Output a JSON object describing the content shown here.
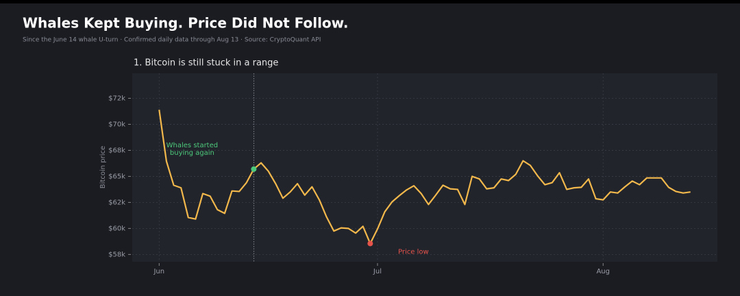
{
  "chart_data": {
    "type": "line",
    "title": "Whales Kept Buying. Price Did Not Follow.",
    "subtitle": "Since the June 14 whale U-turn · Confirmed daily data through Aug 13 · Source: CryptoQuant API",
    "panel_title": "1. Bitcoin is still stuck in a range",
    "y_label": "Bitcoin price",
    "x": [
      0,
      1,
      2,
      3,
      4,
      5,
      6,
      7,
      8,
      9,
      10,
      11,
      12,
      13,
      14,
      15,
      16,
      17,
      18,
      19,
      20,
      21,
      22,
      23,
      24,
      25,
      26,
      27,
      28,
      29,
      30,
      31,
      32,
      33,
      34,
      35,
      36,
      37,
      38,
      39,
      40,
      41,
      42,
      43,
      44,
      45,
      46,
      47,
      48,
      49,
      50,
      51,
      52,
      53,
      54,
      55,
      56,
      57,
      58,
      59,
      60,
      61,
      62,
      63,
      64,
      65,
      66,
      67,
      68,
      69,
      70,
      71,
      72,
      73
    ],
    "values": [
      71400,
      66450,
      64150,
      63900,
      61050,
      60900,
      63350,
      63100,
      61800,
      61450,
      63600,
      63550,
      64400,
      65700,
      66300,
      65500,
      64300,
      62900,
      63500,
      64300,
      63200,
      64000,
      62750,
      61100,
      59750,
      60050,
      60000,
      59550,
      60200,
      58550,
      59950,
      61600,
      62550,
      63150,
      63700,
      64100,
      63350,
      62300,
      63200,
      64150,
      63800,
      63750,
      62300,
      65000,
      64750,
      63800,
      63900,
      64750,
      64600,
      65200,
      66500,
      66050,
      65050,
      64200,
      64400,
      65350,
      63750,
      63900,
      63950,
      64750,
      62850,
      62750,
      63500,
      63400,
      64000,
      64550,
      64200,
      64850,
      64850,
      64850,
      63950,
      63550,
      63400,
      63500
    ],
    "color": "#f2b84b",
    "xlim": [
      -3.7,
      76.7
    ],
    "xticks": [
      {
        "value": 0,
        "label": "Jun"
      },
      {
        "value": 30,
        "label": "Jul"
      },
      {
        "value": 61,
        "label": "Aug"
      }
    ],
    "ylim": [
      56800,
      74900
    ],
    "yticks": [
      {
        "value": 57500,
        "label": "$58k"
      },
      {
        "value": 60000,
        "label": "$60k"
      },
      {
        "value": 62500,
        "label": "$62k"
      },
      {
        "value": 65000,
        "label": "$65k"
      },
      {
        "value": 67500,
        "label": "$68k"
      },
      {
        "value": 70000,
        "label": "$70k"
      },
      {
        "value": 72500,
        "label": "$72k"
      }
    ],
    "grid": true,
    "annotations": [
      {
        "text": [
          "Whales started",
          "buying again"
        ],
        "point": 13,
        "color": "#4cc97a",
        "vline": true
      },
      {
        "text": [
          "Price low"
        ],
        "point": 29,
        "color": "#e5534b",
        "vline": false
      }
    ]
  }
}
